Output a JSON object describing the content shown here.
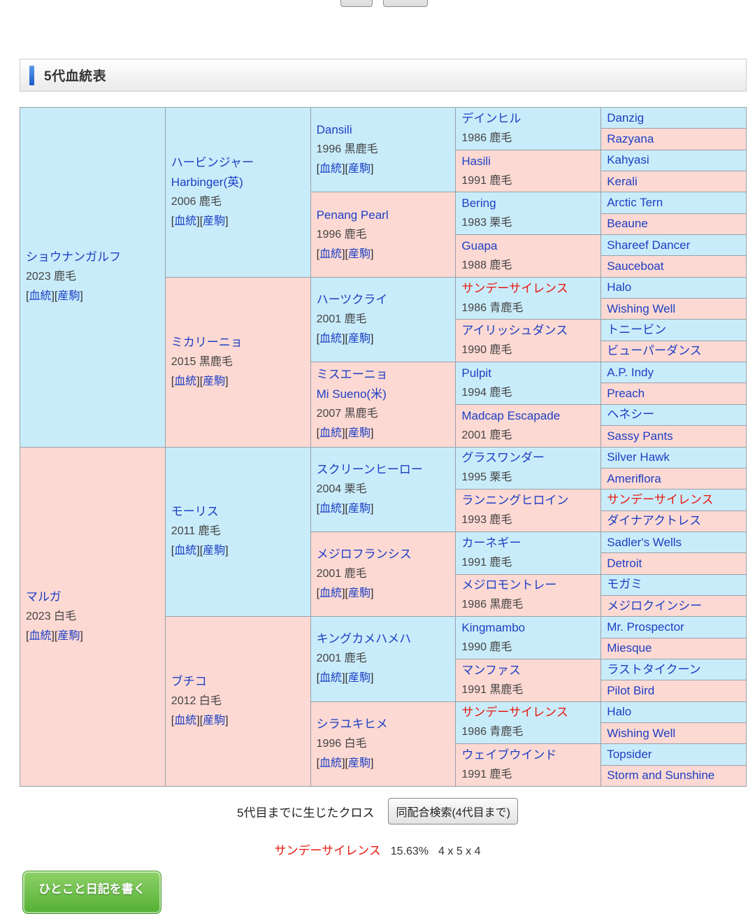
{
  "header": {
    "title": "5代血統表"
  },
  "pedigree": {
    "bp": {
      "open": "[",
      "pedigree_label": "血統",
      "mid": "][",
      "offspring_label": "産駒",
      "close": "]"
    },
    "gen1": [
      {
        "name": "ショウナンガルフ",
        "detail": "2023 鹿毛",
        "bp": true,
        "sex": "m"
      },
      {
        "name": "マルガ",
        "detail": "2023 白毛",
        "bp": true,
        "sex": "f"
      }
    ],
    "gen2": [
      {
        "name": "ハービンジャー",
        "en": "Harbinger(英)",
        "detail": "2006 鹿毛",
        "bp": true,
        "sex": "m"
      },
      {
        "name": "ミカリーニョ",
        "detail": "2015 黒鹿毛",
        "bp": true,
        "sex": "f"
      },
      {
        "name": "モーリス",
        "detail": "2011 鹿毛",
        "bp": true,
        "sex": "m"
      },
      {
        "name": "ブチコ",
        "detail": "2012 白毛",
        "bp": true,
        "sex": "f"
      }
    ],
    "gen3": [
      {
        "name": "Dansili",
        "detail": "1996 黒鹿毛",
        "bp": true,
        "sex": "m"
      },
      {
        "name": "Penang Pearl",
        "detail": "1996 鹿毛",
        "bp": true,
        "sex": "f"
      },
      {
        "name": "ハーツクライ",
        "detail": "2001 鹿毛",
        "bp": true,
        "sex": "m"
      },
      {
        "name": "ミスエーニョ",
        "en": "Mi Sueno(米)",
        "detail": "2007 黒鹿毛",
        "bp": true,
        "sex": "f"
      },
      {
        "name": "スクリーンヒーロー",
        "detail": "2004 栗毛",
        "bp": true,
        "sex": "m"
      },
      {
        "name": "メジロフランシス",
        "detail": "2001 鹿毛",
        "bp": true,
        "sex": "f"
      },
      {
        "name": "キングカメハメハ",
        "detail": "2001 鹿毛",
        "bp": true,
        "sex": "m"
      },
      {
        "name": "シラユキヒメ",
        "detail": "1996 白毛",
        "bp": true,
        "sex": "f"
      }
    ],
    "gen4": [
      {
        "name": "デインヒル",
        "detail": "1986 鹿毛",
        "sex": "m"
      },
      {
        "name": "Hasili",
        "detail": "1991 鹿毛",
        "sex": "f"
      },
      {
        "name": "Bering",
        "detail": "1983 栗毛",
        "sex": "m"
      },
      {
        "name": "Guapa",
        "detail": "1988 鹿毛",
        "sex": "f"
      },
      {
        "name": "サンデーサイレンス",
        "detail": "1986 青鹿毛",
        "sex": "m",
        "red": true
      },
      {
        "name": "アイリッシュダンス",
        "detail": "1990 鹿毛",
        "sex": "f"
      },
      {
        "name": "Pulpit",
        "detail": "1994 鹿毛",
        "sex": "m"
      },
      {
        "name": "Madcap Escapade",
        "detail": "2001 鹿毛",
        "sex": "f"
      },
      {
        "name": "グラスワンダー",
        "detail": "1995 栗毛",
        "sex": "m"
      },
      {
        "name": "ランニングヒロイン",
        "detail": "1993 鹿毛",
        "sex": "f"
      },
      {
        "name": "カーネギー",
        "detail": "1991 鹿毛",
        "sex": "m"
      },
      {
        "name": "メジロモントレー",
        "detail": "1986 黒鹿毛",
        "sex": "f"
      },
      {
        "name": "Kingmambo",
        "detail": "1990 鹿毛",
        "sex": "m"
      },
      {
        "name": "マンファス",
        "detail": "1991 黒鹿毛",
        "sex": "f"
      },
      {
        "name": "サンデーサイレンス",
        "detail": "1986 青鹿毛",
        "sex": "m",
        "red": true
      },
      {
        "name": "ウェイブウインド",
        "detail": "1991 鹿毛",
        "sex": "f"
      }
    ],
    "gen5": [
      {
        "name": "Danzig",
        "sex": "m"
      },
      {
        "name": "Razyana",
        "sex": "f"
      },
      {
        "name": "Kahyasi",
        "sex": "m"
      },
      {
        "name": "Kerali",
        "sex": "f"
      },
      {
        "name": "Arctic Tern",
        "sex": "m"
      },
      {
        "name": "Beaune",
        "sex": "f"
      },
      {
        "name": "Shareef Dancer",
        "sex": "m"
      },
      {
        "name": "Sauceboat",
        "sex": "f"
      },
      {
        "name": "Halo",
        "sex": "m"
      },
      {
        "name": "Wishing Well",
        "sex": "f"
      },
      {
        "name": "トニービン",
        "sex": "m"
      },
      {
        "name": "ビューパーダンス",
        "sex": "f"
      },
      {
        "name": "A.P. Indy",
        "sex": "m"
      },
      {
        "name": "Preach",
        "sex": "f"
      },
      {
        "name": "ヘネシー",
        "sex": "m"
      },
      {
        "name": "Sassy Pants",
        "sex": "f"
      },
      {
        "name": "Silver Hawk",
        "sex": "m"
      },
      {
        "name": "Ameriflora",
        "sex": "f"
      },
      {
        "name": "サンデーサイレンス",
        "sex": "m",
        "red": true
      },
      {
        "name": "ダイナアクトレス",
        "sex": "f"
      },
      {
        "name": "Sadler's Wells",
        "sex": "m"
      },
      {
        "name": "Detroit",
        "sex": "f"
      },
      {
        "name": "モガミ",
        "sex": "m"
      },
      {
        "name": "メジロクインシー",
        "sex": "f"
      },
      {
        "name": "Mr. Prospector",
        "sex": "m"
      },
      {
        "name": "Miesque",
        "sex": "f"
      },
      {
        "name": "ラストタイクーン",
        "sex": "m"
      },
      {
        "name": "Pilot Bird",
        "sex": "f"
      },
      {
        "name": "Halo",
        "sex": "m"
      },
      {
        "name": "Wishing Well",
        "sex": "f"
      },
      {
        "name": "Topsider",
        "sex": "m"
      },
      {
        "name": "Storm and Sunshine",
        "sex": "f"
      }
    ]
  },
  "cross_section": {
    "label": "5代目までに生じたクロス",
    "search_button": "同配合検索(4代目まで)",
    "result": {
      "name": "サンデーサイレンス",
      "percent": "15.63%",
      "pattern": "4 x 5 x 4"
    }
  },
  "diary_button": "ひとこと日記を書く",
  "colors": {
    "male_cell": "#c9ecfa",
    "female_cell": "#fdd9d3",
    "link": "#1c3fc4",
    "cross_red": "#e8170d",
    "accent_blue": "#1a5cc8"
  }
}
